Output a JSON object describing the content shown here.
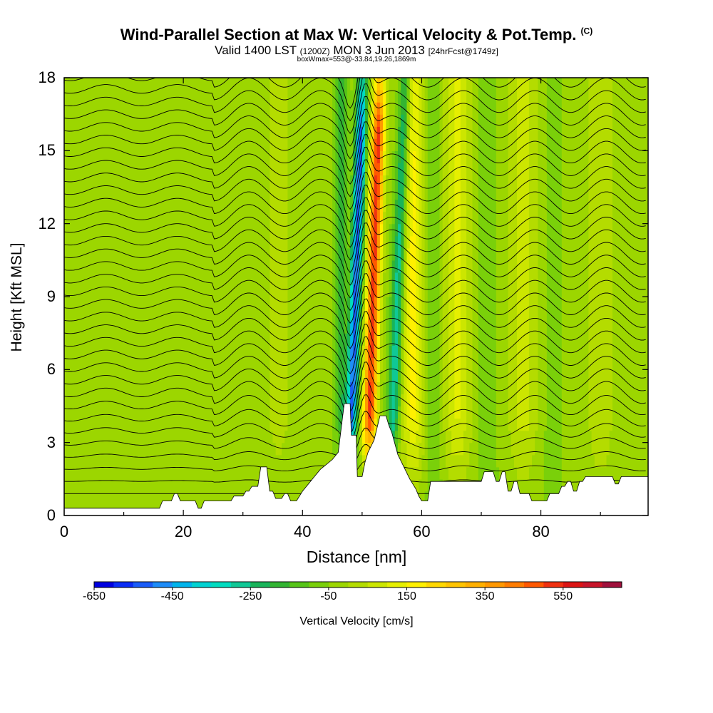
{
  "title": {
    "main": "Wind-Parallel Section at Max W: Vertical Velocity & Pot.Temp.",
    "copyright": "(C)",
    "valid_prefix": "Valid 1400 LST",
    "valid_utc": "(1200Z)",
    "valid_date": "MON 3 Jun 2013",
    "forecast": "[24hrFcst@1749z]",
    "box_info": "boxWmax=553@-33.84,19.26,1869m"
  },
  "chart_data": {
    "type": "heatmap",
    "xlabel": "Distance [nm]",
    "ylabel": "Height [Kft MSL]",
    "xlim": [
      0,
      98
    ],
    "ylim": [
      0,
      18
    ],
    "xticks": [
      "0",
      "20",
      "40",
      "60",
      "80"
    ],
    "yticks": [
      "0",
      "3",
      "6",
      "9",
      "12",
      "15",
      "18"
    ],
    "colorbar": {
      "label": "Vertical Velocity [cm/s]",
      "ticks": [
        "-650",
        "-450",
        "-250",
        "-50",
        "150",
        "350",
        "550"
      ],
      "levels": [
        -650,
        -600,
        -550,
        -500,
        -450,
        -400,
        -350,
        -300,
        -250,
        -200,
        -150,
        -100,
        -50,
        0,
        50,
        100,
        150,
        200,
        250,
        300,
        350,
        400,
        450,
        500,
        550,
        600,
        650
      ],
      "colors": [
        "#0000e0",
        "#0a2cf5",
        "#1a5cf8",
        "#1e8cf8",
        "#00b4ec",
        "#00d2d2",
        "#00dcc0",
        "#10c896",
        "#18b45a",
        "#32b432",
        "#56c418",
        "#7ad00a",
        "#9cd600",
        "#b4dc00",
        "#cce600",
        "#e6ef00",
        "#fff000",
        "#ffd800",
        "#ffc400",
        "#ffb000",
        "#ff9800",
        "#ff7c00",
        "#ff5800",
        "#f03010",
        "#dc1414",
        "#c8142a",
        "#a0103c"
      ]
    },
    "features": {
      "max_updraft_cm_s": 553,
      "downdraft_x_nm": 48.5,
      "updraft_x_nm": 51.5,
      "wave_crests_x_nm": [
        36,
        59,
        66,
        77,
        90
      ],
      "terrain_peaks_x_nm": [
        33.5,
        48,
        53.5
      ]
    },
    "terrain_profile": [
      [
        0,
        0.3
      ],
      [
        16,
        0.3
      ],
      [
        16.5,
        0.6
      ],
      [
        18,
        0.6
      ],
      [
        18.5,
        0.9
      ],
      [
        19,
        0.9
      ],
      [
        19.5,
        0.6
      ],
      [
        22,
        0.6
      ],
      [
        22.5,
        0.3
      ],
      [
        23,
        0.3
      ],
      [
        23.5,
        0.6
      ],
      [
        28,
        0.6
      ],
      [
        28.5,
        0.8
      ],
      [
        30,
        0.8
      ],
      [
        30.5,
        1.0
      ],
      [
        31,
        1.0
      ],
      [
        31.5,
        1.2
      ],
      [
        32.5,
        1.2
      ],
      [
        33,
        2.0
      ],
      [
        34,
        2.0
      ],
      [
        34.5,
        1.0
      ],
      [
        35,
        1.0
      ],
      [
        35.5,
        0.7
      ],
      [
        36.5,
        0.7
      ],
      [
        37,
        0.9
      ],
      [
        37.5,
        0.9
      ],
      [
        38,
        0.6
      ],
      [
        39,
        0.6
      ],
      [
        39.5,
        0.8
      ],
      [
        40,
        1.0
      ],
      [
        41,
        1.3
      ],
      [
        42,
        1.6
      ],
      [
        43,
        1.9
      ],
      [
        44,
        2.1
      ],
      [
        45,
        2.3
      ],
      [
        46,
        2.6
      ],
      [
        47,
        4.6
      ],
      [
        48,
        4.6
      ],
      [
        48.2,
        3.3
      ],
      [
        49,
        3.3
      ],
      [
        49.2,
        1.6
      ],
      [
        50,
        1.6
      ],
      [
        50.5,
        2.2
      ],
      [
        51,
        2.6
      ],
      [
        52,
        3.1
      ],
      [
        52.5,
        3.6
      ],
      [
        53,
        4.1
      ],
      [
        54,
        4.1
      ],
      [
        54.5,
        3.7
      ],
      [
        55,
        3.4
      ],
      [
        56,
        2.5
      ],
      [
        57,
        2.0
      ],
      [
        58,
        1.5
      ],
      [
        59,
        1.1
      ],
      [
        59.5,
        0.8
      ],
      [
        60,
        0.6
      ],
      [
        61,
        0.6
      ],
      [
        61.5,
        1.4
      ],
      [
        70,
        1.4
      ],
      [
        70.5,
        1.8
      ],
      [
        72,
        1.8
      ],
      [
        72.5,
        1.4
      ],
      [
        73,
        1.4
      ],
      [
        73.5,
        1.8
      ],
      [
        74,
        1.8
      ],
      [
        74.5,
        1.0
      ],
      [
        75,
        1.0
      ],
      [
        75.5,
        1.4
      ],
      [
        76,
        1.4
      ],
      [
        76.5,
        0.9
      ],
      [
        78,
        0.9
      ],
      [
        78.5,
        0.6
      ],
      [
        81,
        0.6
      ],
      [
        81.5,
        0.9
      ],
      [
        83,
        0.9
      ],
      [
        83.5,
        1.2
      ],
      [
        84,
        1.2
      ],
      [
        84.5,
        1.4
      ],
      [
        85,
        1.4
      ],
      [
        85.5,
        1.0
      ],
      [
        86,
        1.0
      ],
      [
        86.5,
        1.4
      ],
      [
        87,
        1.4
      ],
      [
        87.5,
        1.6
      ],
      [
        92,
        1.6
      ],
      [
        92.5,
        1.3
      ],
      [
        93,
        1.3
      ],
      [
        93.5,
        1.6
      ],
      [
        98,
        1.6
      ]
    ]
  }
}
